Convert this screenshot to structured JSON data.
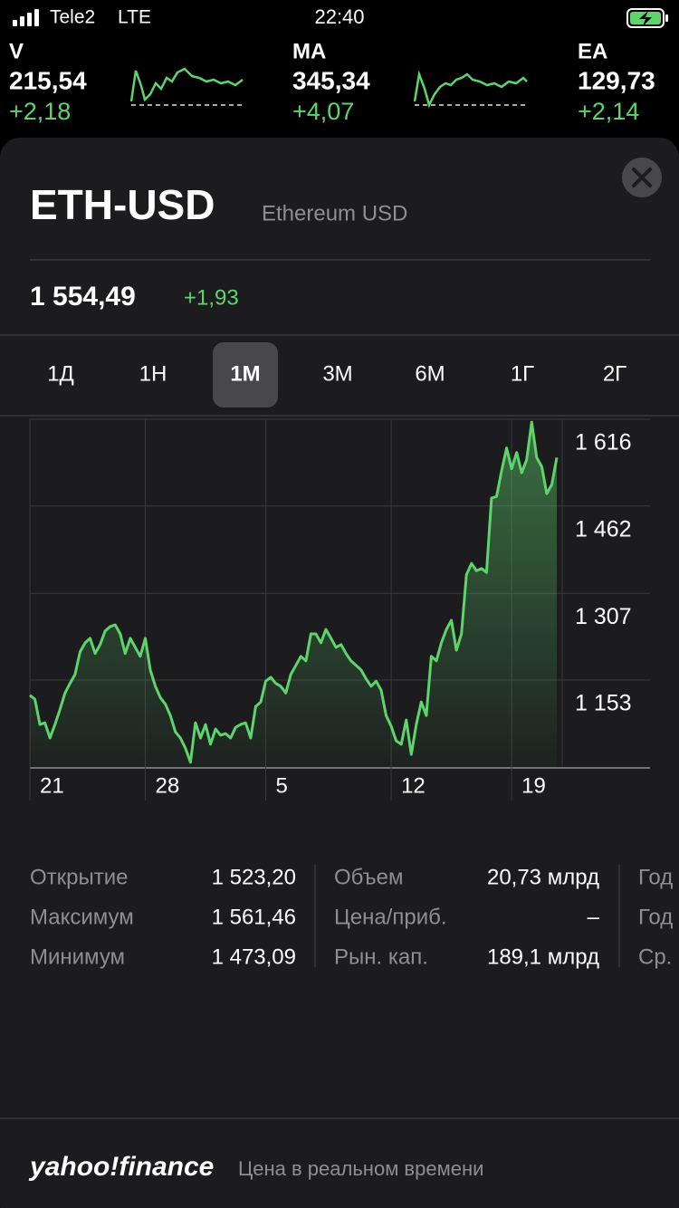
{
  "status_bar": {
    "carrier": "Tele2",
    "network": "LTE",
    "time": "22:40"
  },
  "tickers": [
    {
      "symbol": "V",
      "price": "215,54",
      "change": "+2,18"
    },
    {
      "symbol": "MA",
      "price": "345,34",
      "change": "+4,07"
    },
    {
      "symbol": "EA",
      "price": "129,73",
      "change": "+2,14"
    }
  ],
  "header": {
    "symbol": "ETH-USD",
    "name": "Ethereum USD",
    "price": "1 554,49",
    "change": "+1,93"
  },
  "ranges": [
    {
      "label": "1Д"
    },
    {
      "label": "1Н"
    },
    {
      "label": "1М",
      "selected": true
    },
    {
      "label": "3М"
    },
    {
      "label": "6М"
    },
    {
      "label": "1Г"
    },
    {
      "label": "2Г"
    }
  ],
  "chart_data": {
    "type": "line",
    "grid": true,
    "series": [
      {
        "color": "#5ed46c",
        "values": [
          1126,
          1119,
          1074,
          1077,
          1050,
          1074,
          1101,
          1130,
          1147,
          1163,
          1203,
          1219,
          1227,
          1200,
          1216,
          1240,
          1248,
          1251,
          1235,
          1200,
          1227,
          1211,
          1195,
          1227,
          1171,
          1142,
          1122,
          1110,
          1090,
          1061,
          1050,
          1032,
          1007,
          1077,
          1050,
          1074,
          1039,
          1066,
          1055,
          1058,
          1050,
          1069,
          1074,
          1077,
          1050,
          1106,
          1114,
          1151,
          1158,
          1147,
          1142,
          1130,
          1163,
          1179,
          1195,
          1187,
          1235,
          1235,
          1219,
          1243,
          1227,
          1211,
          1216,
          1200,
          1187,
          1179,
          1171,
          1155,
          1142,
          1151,
          1135,
          1090,
          1071,
          1045,
          1039,
          1082,
          1021,
          1074,
          1114,
          1090,
          1195,
          1187,
          1219,
          1243,
          1259,
          1206,
          1235,
          1340,
          1360,
          1347,
          1351,
          1344,
          1476,
          1479,
          1524,
          1565,
          1528,
          1557,
          1521,
          1544,
          1611,
          1548,
          1532,
          1484,
          1500,
          1548
        ]
      }
    ],
    "ylim": [
      997,
      1616
    ],
    "yticks": [
      {
        "value": 1616,
        "label": "1 616"
      },
      {
        "value": 1462,
        "label": "1 462"
      },
      {
        "value": 1307,
        "label": "1 307"
      },
      {
        "value": 1153,
        "label": "1 153"
      }
    ],
    "xticks": [
      {
        "value": 0,
        "label": "21"
      },
      {
        "value": 23,
        "label": "28"
      },
      {
        "value": 47,
        "label": "5"
      },
      {
        "value": 72,
        "label": "12"
      },
      {
        "value": 96,
        "label": "19"
      }
    ]
  },
  "stats": {
    "columns": [
      {
        "rows": [
          {
            "label": "Открытие",
            "value": "1 523,20"
          },
          {
            "label": "Максимум",
            "value": "1 561,46"
          },
          {
            "label": "Минимум",
            "value": "1 473,09"
          }
        ]
      },
      {
        "rows": [
          {
            "label": "Объем",
            "value": "20,73 млрд"
          },
          {
            "label": "Цена/приб.",
            "value": "–"
          },
          {
            "label": "Рын. кап.",
            "value": "189,1 млрд"
          }
        ]
      },
      {
        "rows": [
          {
            "label": "Год"
          },
          {
            "label": "Год"
          },
          {
            "label": "Ср."
          }
        ]
      }
    ]
  },
  "footer": {
    "logo": "yahoo!finance",
    "caption": "Цена в реальном времени"
  }
}
